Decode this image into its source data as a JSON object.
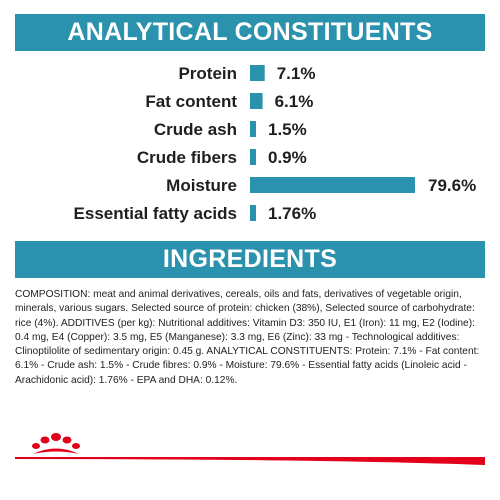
{
  "header": {
    "analytical_title": "ANALYTICAL CONSTITUENTS",
    "ingredients_title": "INGREDIENTS"
  },
  "colors": {
    "banner": "#2a92ad",
    "bar": "#2a92ad",
    "brand_red": "#e2001a"
  },
  "chart_data": {
    "type": "bar",
    "orientation": "horizontal",
    "categories": [
      "Protein",
      "Fat content",
      "Crude ash",
      "Crude fibers",
      "Moisture",
      "Essential fatty acids"
    ],
    "values": [
      7.1,
      6.1,
      1.5,
      0.9,
      79.6,
      1.76
    ],
    "value_labels": [
      "7.1%",
      "6.1%",
      "1.5%",
      "0.9%",
      "79.6%",
      "1.76%"
    ],
    "xlim": [
      0,
      79.6
    ],
    "grid": false,
    "legend": "none"
  },
  "ingredients": {
    "composition": "COMPOSITION: meat and animal derivatives, cereals, oils and fats, derivatives of vegetable origin, minerals, various sugars. Selected source of protein: chicken (38%), Selected source of carbohydrate: rice (4%). ADDITIVES (per kg): Nutritional additives: Vitamin D3: 350 IU, E1 (Iron): 11 mg, E2 (Iodine): 0.4 mg, E4 (Copper): 3.5 mg, E5 (Manganese): 3.3 mg, E6 (Zinc): 33 mg - Technological additives: Clinoptilolite of sedimentary origin: 0.45 g. ANALYTICAL CONSTITUENTS: Protein: 7.1% - Fat content: 6.1% - Crude ash: 1.5% - Crude fibres: 0.9% - Moisture: 79.6% - Essential fatty acids (Linoleic acid - Arachidonic acid): 1.76% - EPA and DHA: 0.12%."
  },
  "brand": {
    "logo_icon": "crown-icon"
  }
}
